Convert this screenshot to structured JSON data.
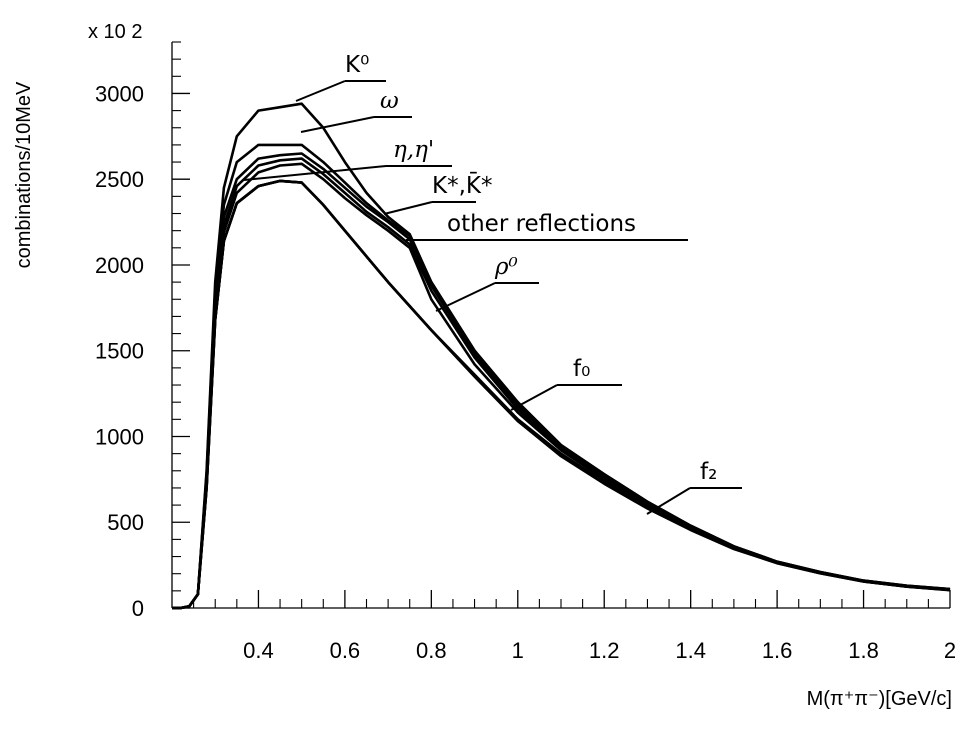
{
  "chart_data": {
    "type": "line",
    "title": "",
    "xlabel": "M(π⁺π⁻)[GeV/c]",
    "ylabel": "combinations/10MeV",
    "y_multiplier": "x 10 2",
    "xlim": [
      0.2,
      2.0
    ],
    "ylim": [
      0,
      3000
    ],
    "x_ticks": [
      0.4,
      0.6,
      0.8,
      1,
      1.2,
      1.4,
      1.6,
      1.8,
      2
    ],
    "y_ticks": [
      0,
      500,
      1000,
      1500,
      2000,
      2500,
      3000
    ],
    "grid": false,
    "x": [
      0.2,
      0.22,
      0.24,
      0.26,
      0.28,
      0.3,
      0.32,
      0.35,
      0.4,
      0.45,
      0.5,
      0.55,
      0.6,
      0.65,
      0.7,
      0.75,
      0.8,
      0.9,
      1.0,
      1.1,
      1.2,
      1.3,
      1.4,
      1.5,
      1.6,
      1.7,
      1.8,
      1.9,
      2.0
    ],
    "series": [
      {
        "name": "K⁰",
        "values": [
          0,
          0,
          10,
          80,
          800,
          1900,
          2450,
          2750,
          2900,
          2920,
          2940,
          2800,
          2600,
          2420,
          2280,
          2180,
          1900,
          1500,
          1200,
          950,
          780,
          620,
          480,
          360,
          270,
          210,
          160,
          130,
          110
        ]
      },
      {
        "name": "ω",
        "values": [
          0,
          0,
          10,
          80,
          780,
          1850,
          2350,
          2600,
          2700,
          2700,
          2700,
          2600,
          2480,
          2360,
          2260,
          2170,
          1900,
          1500,
          1200,
          950,
          780,
          620,
          480,
          360,
          270,
          210,
          160,
          130,
          110
        ]
      },
      {
        "name": "η,η'",
        "values": [
          0,
          0,
          10,
          80,
          760,
          1800,
          2280,
          2500,
          2620,
          2640,
          2650,
          2560,
          2450,
          2340,
          2250,
          2150,
          1880,
          1480,
          1180,
          940,
          770,
          610,
          475,
          355,
          268,
          208,
          158,
          128,
          108
        ]
      },
      {
        "name": "K*,K̄*",
        "values": [
          0,
          0,
          10,
          80,
          740,
          1760,
          2230,
          2460,
          2580,
          2610,
          2620,
          2530,
          2420,
          2310,
          2220,
          2120,
          1850,
          1460,
          1160,
          930,
          760,
          605,
          470,
          352,
          266,
          206,
          157,
          127,
          107
        ]
      },
      {
        "name": "other reflections",
        "values": [
          0,
          0,
          10,
          80,
          720,
          1720,
          2190,
          2420,
          2540,
          2580,
          2590,
          2500,
          2390,
          2290,
          2200,
          2100,
          1800,
          1420,
          1140,
          920,
          750,
          600,
          465,
          350,
          265,
          205,
          156,
          126,
          106
        ]
      },
      {
        "name": "ρ⁰",
        "values": [
          0,
          0,
          10,
          80,
          700,
          1680,
          2140,
          2360,
          2460,
          2490,
          2480,
          2350,
          2200,
          2050,
          1900,
          1760,
          1620,
          1360,
          1100,
          900,
          735,
          590,
          460,
          347,
          263,
          204,
          155,
          125,
          105
        ]
      },
      {
        "name": "f₀",
        "values": [
          0,
          0,
          10,
          80,
          700,
          1680,
          2140,
          2360,
          2460,
          2490,
          2480,
          2350,
          2200,
          2050,
          1900,
          1760,
          1620,
          1350,
          1090,
          890,
          730,
          585,
          458,
          346,
          262,
          203,
          155,
          125,
          105
        ]
      },
      {
        "name": "f₂",
        "values": [
          0,
          0,
          10,
          80,
          700,
          1680,
          2140,
          2360,
          2460,
          2490,
          2480,
          2350,
          2200,
          2050,
          1900,
          1760,
          1620,
          1350,
          1090,
          885,
          725,
          580,
          455,
          344,
          261,
          202,
          154,
          124,
          104
        ]
      }
    ],
    "annotations": [
      {
        "label": "K⁰",
        "series": 0
      },
      {
        "label": "ω",
        "series": 1
      },
      {
        "label": "η,η'",
        "series": 2
      },
      {
        "label": "K*,K̄*",
        "series": 3
      },
      {
        "label": "other reflections",
        "series": 4
      },
      {
        "label": "ρ⁰",
        "series": 5
      },
      {
        "label": "f₀",
        "series": 6
      },
      {
        "label": "f₂",
        "series": 7
      }
    ],
    "line_color": "#000000"
  }
}
